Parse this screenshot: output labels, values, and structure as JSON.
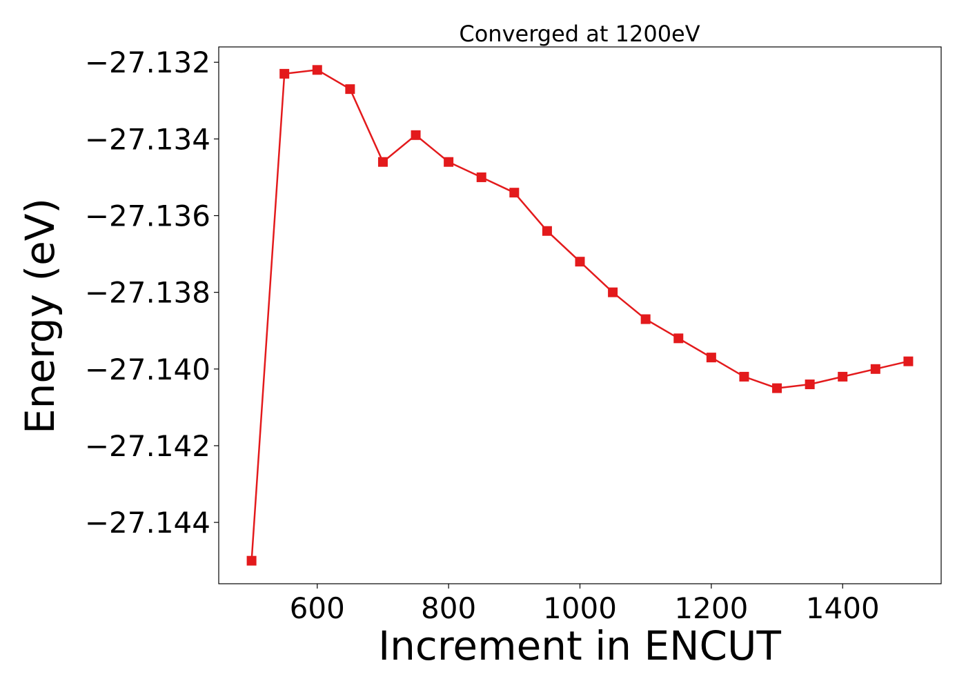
{
  "chart_data": {
    "type": "line",
    "title": "Converged at 1200eV",
    "xlabel": "Increment in ENCUT",
    "ylabel": "Energy (eV)",
    "xlim": [
      450,
      1550
    ],
    "ylim": [
      -27.1456,
      -27.1316
    ],
    "x_ticks": [
      600,
      800,
      1000,
      1200,
      1400
    ],
    "x_tick_labels": [
      "600",
      "800",
      "1000",
      "1200",
      "1400"
    ],
    "y_ticks": [
      -27.132,
      -27.134,
      -27.136,
      -27.138,
      -27.14,
      -27.142,
      -27.144
    ],
    "y_tick_labels": [
      "−27.132",
      "−27.134",
      "−27.136",
      "−27.138",
      "−27.140",
      "−27.142",
      "−27.144"
    ],
    "grid": false,
    "series": [
      {
        "color": "#e31a1c",
        "marker": "square",
        "x": [
          500,
          550,
          600,
          650,
          700,
          750,
          800,
          850,
          900,
          950,
          1000,
          1050,
          1100,
          1150,
          1200,
          1250,
          1300,
          1350,
          1400,
          1450,
          1500
        ],
        "y": [
          -27.145,
          -27.1323,
          -27.1322,
          -27.1327,
          -27.1346,
          -27.1339,
          -27.1346,
          -27.135,
          -27.1354,
          -27.1364,
          -27.1372,
          -27.138,
          -27.1387,
          -27.1392,
          -27.1397,
          -27.1402,
          -27.1405,
          -27.1404,
          -27.1402,
          -27.14,
          -27.1398
        ]
      }
    ]
  }
}
